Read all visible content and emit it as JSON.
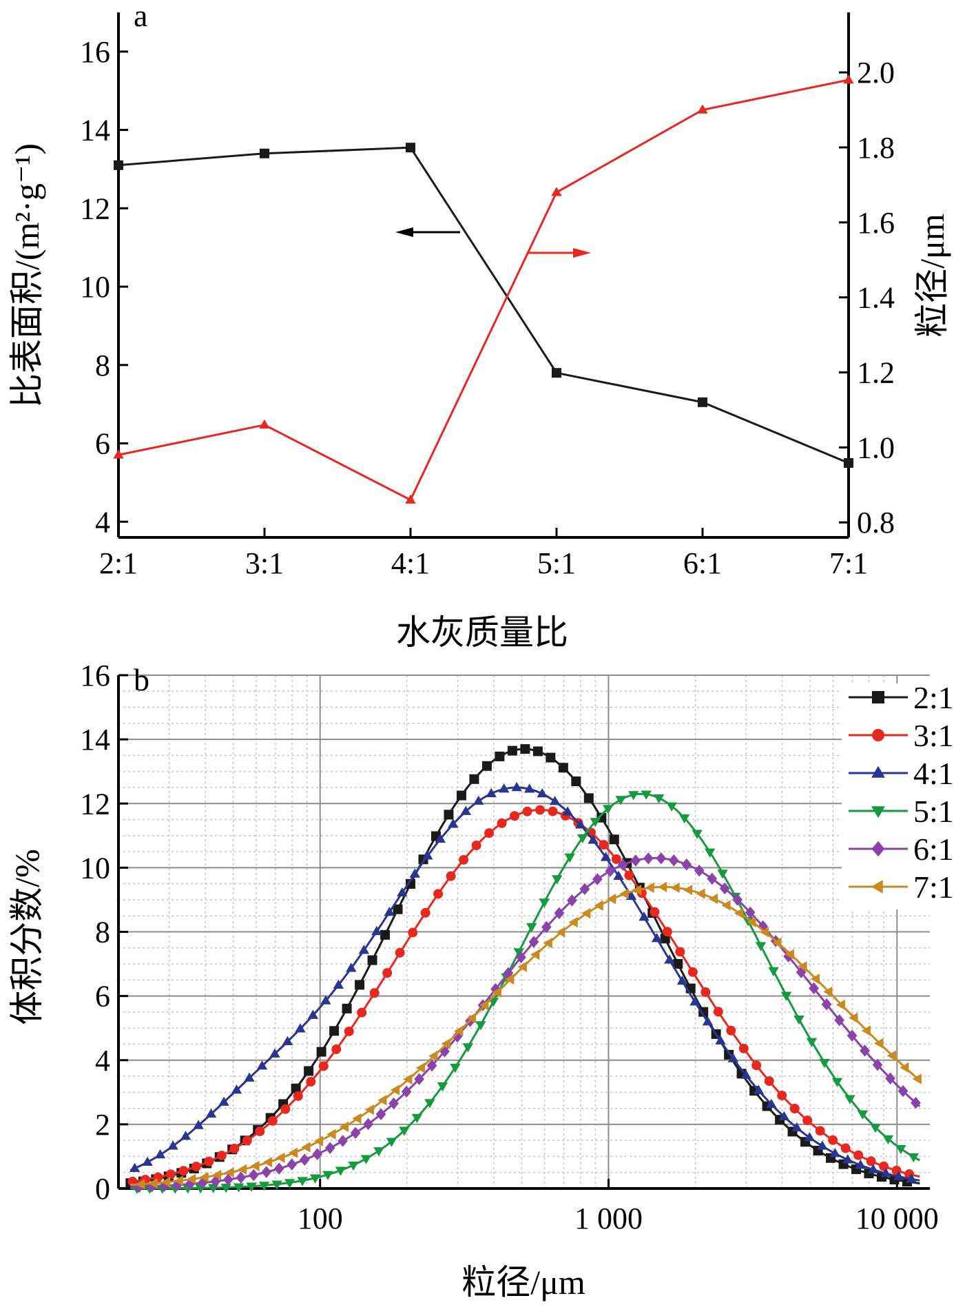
{
  "chart_data": [
    {
      "panel_label": "a",
      "type": "line",
      "categories": [
        "2:1",
        "3:1",
        "4:1",
        "5:1",
        "6:1",
        "7:1"
      ],
      "xlabel": "水灰质量比",
      "ylabel_left": "比表面积/(m²·g⁻¹)",
      "ylabel_right": "粒径/μm",
      "ylim_left": [
        3.6,
        17
      ],
      "ylim_right": [
        0.76,
        2.16
      ],
      "yticks_left": [
        4,
        6,
        8,
        10,
        12,
        14,
        16
      ],
      "yticks_right": [
        0.8,
        1.0,
        1.2,
        1.4,
        1.6,
        1.8,
        2.0
      ],
      "ytick_labels_right": [
        "0.8",
        "1.0",
        "1.2",
        "1.4",
        "1.6",
        "1.8",
        "2.0"
      ],
      "grid": false,
      "series": [
        {
          "axis": "left",
          "color": "#1a1a1a",
          "marker": "square",
          "values": [
            13.1,
            13.4,
            13.55,
            7.8,
            7.05,
            5.5
          ]
        },
        {
          "axis": "right",
          "color": "#e8271f",
          "marker": "triangle",
          "values": [
            0.98,
            1.06,
            0.86,
            1.68,
            1.9,
            1.98
          ]
        }
      ]
    },
    {
      "panel_label": "b",
      "type": "line",
      "xscale": "log",
      "xlabel": "粒径/μm",
      "ylabel": "体积分数/%",
      "xlim": [
        20,
        13000
      ],
      "ylim": [
        0,
        16
      ],
      "xticks": [
        100,
        1000,
        10000
      ],
      "xtick_labels": [
        "100",
        "1 000",
        "10 000"
      ],
      "yticks": [
        0,
        2,
        4,
        6,
        8,
        10,
        12,
        14,
        16
      ],
      "grid": true,
      "legend_position": "top-right",
      "series": [
        {
          "name": "2:1",
          "color": "#1a1a1a",
          "marker": "square",
          "mu": 510,
          "sigma": 0.46,
          "amplitude": 13.7
        },
        {
          "name": "3:1",
          "color": "#e8271f",
          "marker": "circle",
          "mu": 580,
          "sigma": 0.5,
          "amplitude": 11.8
        },
        {
          "name": "4:1",
          "color": "#2a3590",
          "marker": "triangle",
          "mu": 480,
          "sigma": 0.5,
          "amplitude": 12.5,
          "minor_peak": {
            "x": 58,
            "y": 1.2,
            "sigma": 0.23
          }
        },
        {
          "name": "5:1",
          "color": "#169a3f",
          "marker": "triangle-down",
          "mu": 1300,
          "sigma": 0.42,
          "amplitude": 12.3
        },
        {
          "name": "6:1",
          "color": "#8a43a8",
          "marker": "diamond",
          "mu": 1450,
          "sigma": 0.55,
          "amplitude": 10.3
        },
        {
          "name": "7:1",
          "color": "#c98a22",
          "marker": "triangle-left",
          "mu": 1550,
          "sigma": 0.62,
          "amplitude": 9.4
        }
      ]
    }
  ]
}
